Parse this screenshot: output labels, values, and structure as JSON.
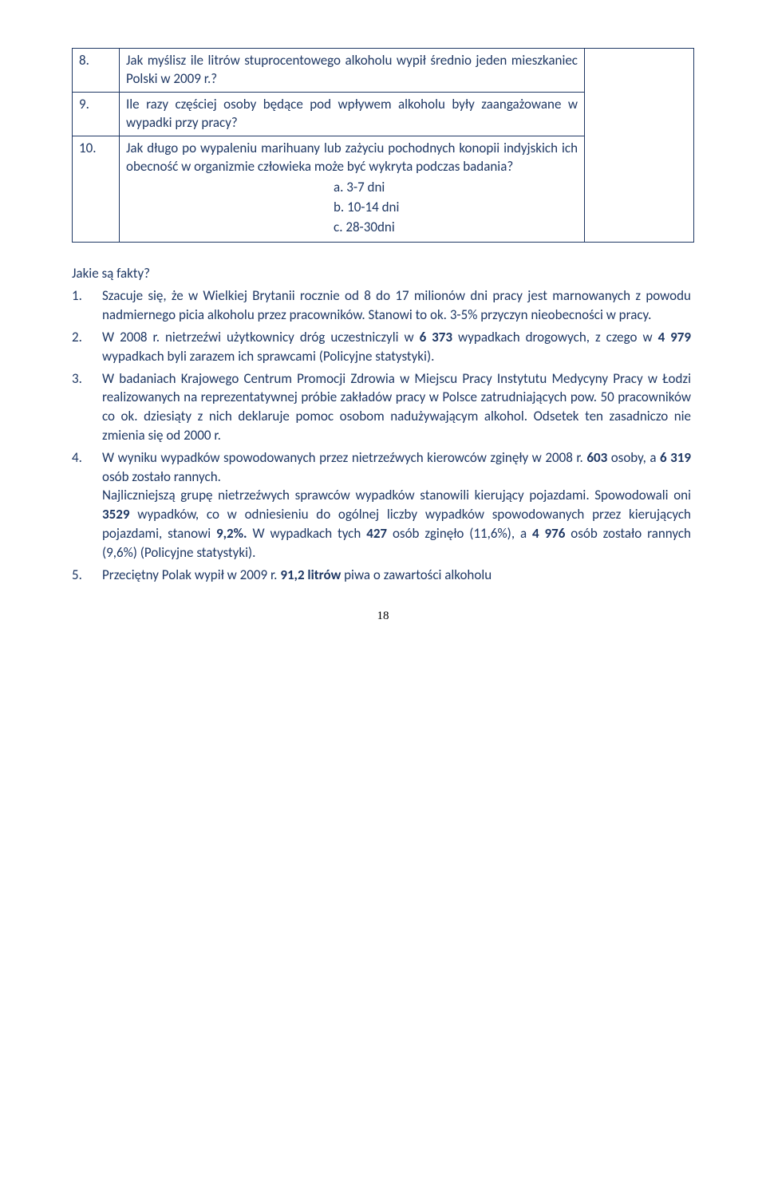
{
  "quiz": [
    {
      "num": "8.",
      "text": "Jak myślisz ile litrów stuprocentowego alkoholu wypił średnio jeden mieszkaniec Polski w 2009 r.?"
    },
    {
      "num": "9.",
      "text": "Ile razy częściej osoby będące pod wpływem alkoholu były zaangażowane w wypadki przy pracy?"
    },
    {
      "num": "10.",
      "text": "Jak długo po wypaleniu marihuany lub zażyciu pochodnych konopii indyjskich ich obecność w organizmie człowieka może być wykryta podczas badania?",
      "options": [
        {
          "label": "a.",
          "text": "3-7 dni"
        },
        {
          "label": "b.",
          "text": "10-14 dni"
        },
        {
          "label": "c.",
          "text": "28-30dni"
        }
      ]
    }
  ],
  "facts_heading": "Jakie są fakty?",
  "facts": [
    {
      "num": "1.",
      "html": "Szacuje się, że w Wielkiej Brytanii rocznie od 8 do 17 milionów dni pracy jest marnowanych z powodu nadmiernego picia alkoholu przez pracowników. Stanowi to ok. 3-5% przyczyn nieobecności w pracy."
    },
    {
      "num": "2.",
      "html": "W 2008 r. nietrzeźwi użytkownicy dróg uczestniczyli w <b>6 373</b> wypadkach drogowych, z czego w <b>4 979</b> wypadkach byli zarazem ich sprawcami (Policyjne statystyki)."
    },
    {
      "num": "3.",
      "html": "W badaniach Krajowego Centrum Promocji Zdrowia w Miejscu Pracy Instytutu Medycyny Pracy w Łodzi realizowanych na reprezentatywnej próbie zakładów pracy w Polsce zatrudniających pow. 50 pracowników co ok. dziesiąty z nich deklaruje pomoc osobom nadużywającym alkohol. Odsetek ten zasadniczo nie zmienia się od 2000 r."
    },
    {
      "num": "4.",
      "html": "W wyniku wypadków spowodowanych przez nietrzeźwych kierowców zginęły w 2008 r. <b>603</b> osoby, a <b>6 319</b> osób zostało rannych.<br>Najliczniejszą grupę nietrzeźwych sprawców wypadków stanowili kierujący pojazdami. Spowodowali oni <b>3529</b> wypadków, co w odniesieniu do ogólnej liczby wypadków spowodowanych przez kierujących pojazdami, stanowi <b>9,2%.</b> W wypadkach tych <b>427</b> osób zginęło (11,6%), a <b>4 976</b> osób zostało rannych (9,6%) (Policyjne statystyki)."
    },
    {
      "num": "5.",
      "html": "Przeciętny Polak wypił w 2009 r. <b>91,2 litrów</b> piwa o zawartości alkoholu"
    }
  ],
  "page_number": "18"
}
